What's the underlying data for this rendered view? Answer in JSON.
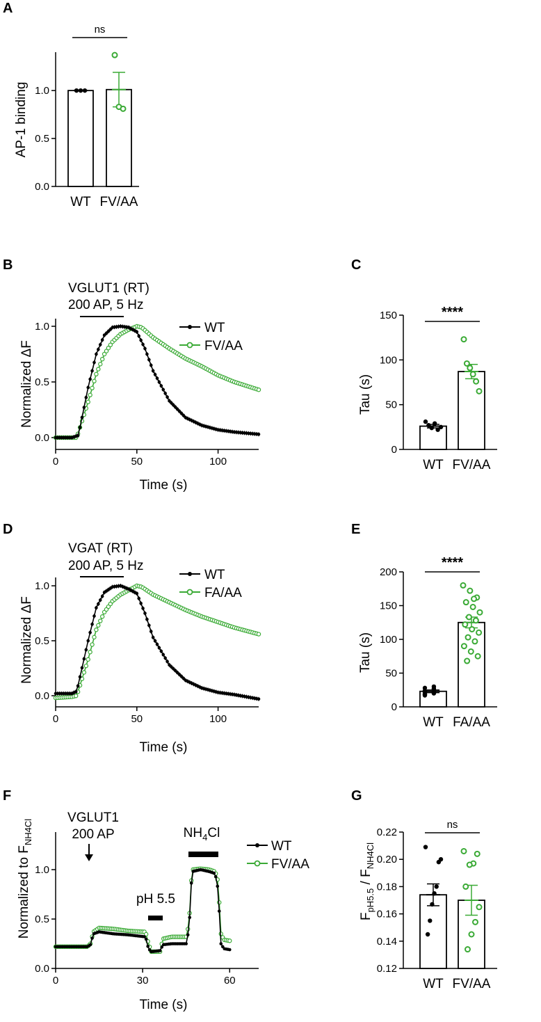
{
  "colors": {
    "wt": "#000000",
    "mut": "#3aaa35"
  },
  "panels": {
    "A": {
      "letter": "A",
      "ylabel": "AP-1 binding",
      "categories": [
        "WT",
        "FV/AA"
      ],
      "significance": "ns",
      "yticks": [
        "0.0",
        "0.5",
        "1.0"
      ]
    },
    "B": {
      "letter": "B",
      "annotation_line1": "VGLUT1 (RT)",
      "annotation_line2": "200 AP, 5 Hz",
      "ylabel": "Normalized ΔF",
      "xlabel": "Time  (s)",
      "legend": [
        "WT",
        "FV/AA"
      ],
      "xticks": [
        "0",
        "50",
        "100"
      ],
      "yticks": [
        "0.0",
        "0.5",
        "1.0"
      ]
    },
    "C": {
      "letter": "C",
      "ylabel": "Tau (s)",
      "categories": [
        "WT",
        "FV/AA"
      ],
      "significance": "****",
      "yticks": [
        "0",
        "50",
        "100",
        "150"
      ]
    },
    "D": {
      "letter": "D",
      "annotation_line1": "VGAT (RT)",
      "annotation_line2": "200 AP, 5 Hz",
      "ylabel": "Normalized ΔF",
      "xlabel": "Time   (s)",
      "legend": [
        "WT",
        "FA/AA"
      ],
      "xticks": [
        "0",
        "50",
        "100"
      ],
      "yticks": [
        "0.0",
        "0.5",
        "1.0"
      ]
    },
    "E": {
      "letter": "E",
      "ylabel": "Tau (s)",
      "categories": [
        "WT",
        "FA/AA"
      ],
      "significance": "****",
      "yticks": [
        "0",
        "50",
        "100",
        "150",
        "200"
      ]
    },
    "F": {
      "letter": "F",
      "annotation_line1": "VGLUT1",
      "annotation_line2": "200 AP",
      "ph_label": "pH 5.5",
      "nh4_main": "NH",
      "nh4_sub": "4",
      "nh4_tail": "Cl",
      "ylabel_main": "Normalized to F",
      "ylabel_sub": "NH4Cl",
      "xlabel": "Time  (s)",
      "legend": [
        "WT",
        "FV/AA"
      ],
      "xticks": [
        "0",
        "30",
        "60"
      ],
      "yticks": [
        "0.0",
        "0.5",
        "1.0"
      ]
    },
    "G": {
      "letter": "G",
      "ylabel_f1": "F",
      "ylabel_s1": "pH5.5",
      "ylabel_mid": " / F",
      "ylabel_s2": "NH4Cl",
      "categories": [
        "WT",
        "FV/AA"
      ],
      "significance": "ns",
      "yticks": [
        "0.12",
        "0.14",
        "0.16",
        "0.18",
        "0.20",
        "0.22"
      ]
    }
  },
  "chart_data": [
    {
      "panel": "A",
      "type": "bar",
      "title": "",
      "xlabel": "",
      "ylabel": "AP-1 binding",
      "categories": [
        "WT",
        "FV/AA"
      ],
      "ylim": [
        0,
        1.4
      ],
      "series": [
        {
          "name": "mean",
          "values": [
            1.0,
            1.01
          ]
        }
      ],
      "sem": [
        0,
        0.18
      ],
      "points": [
        [
          1.0,
          1.0,
          1.0
        ],
        [
          1.37,
          0.83,
          0.81
        ]
      ],
      "significance": "ns"
    },
    {
      "panel": "B",
      "type": "line",
      "title": "VGLUT1 (RT) 200 AP, 5 Hz",
      "xlabel": "Time  (s)",
      "ylabel": "Normalized ΔF",
      "xlim": [
        0,
        125
      ],
      "ylim": [
        -0.05,
        1.1
      ],
      "stimulus": [
        15,
        42
      ],
      "series": [
        {
          "name": "WT",
          "x": [
            0,
            10,
            14,
            20,
            25,
            30,
            35,
            40,
            45,
            50,
            55,
            60,
            70,
            80,
            90,
            100,
            110,
            125
          ],
          "y": [
            0.0,
            0.0,
            0.02,
            0.45,
            0.75,
            0.92,
            0.99,
            1.0,
            0.99,
            0.95,
            0.8,
            0.6,
            0.33,
            0.18,
            0.11,
            0.07,
            0.05,
            0.03
          ]
        },
        {
          "name": "FV/AA",
          "x": [
            0,
            10,
            13,
            20,
            25,
            30,
            35,
            40,
            45,
            50,
            53,
            60,
            70,
            80,
            90,
            100,
            110,
            125
          ],
          "y": [
            0.0,
            0.0,
            0.0,
            0.32,
            0.57,
            0.75,
            0.86,
            0.93,
            0.97,
            1.0,
            0.99,
            0.9,
            0.8,
            0.71,
            0.64,
            0.56,
            0.5,
            0.43
          ]
        }
      ]
    },
    {
      "panel": "C",
      "type": "bar",
      "title": "",
      "xlabel": "",
      "ylabel": "Tau (s)",
      "categories": [
        "WT",
        "FV/AA"
      ],
      "ylim": [
        0,
        150
      ],
      "series": [
        {
          "name": "mean",
          "values": [
            26,
            87
          ]
        }
      ],
      "sem": [
        2,
        8
      ],
      "points": [
        [
          31,
          27,
          24,
          29,
          22,
          25
        ],
        [
          123,
          96,
          91,
          84,
          76,
          65
        ]
      ],
      "significance": "****"
    },
    {
      "panel": "D",
      "type": "line",
      "title": "VGAT (RT) 200 AP, 5 Hz",
      "xlabel": "Time   (s)",
      "ylabel": "Normalized ΔF",
      "xlim": [
        0,
        125
      ],
      "ylim": [
        -0.05,
        1.1
      ],
      "stimulus": [
        15,
        42
      ],
      "series": [
        {
          "name": "WT",
          "x": [
            0,
            10,
            13,
            20,
            25,
            30,
            35,
            40,
            45,
            50,
            55,
            60,
            70,
            80,
            90,
            100,
            110,
            125
          ],
          "y": [
            0.02,
            0.02,
            0.04,
            0.5,
            0.8,
            0.94,
            0.99,
            1.0,
            0.97,
            0.93,
            0.75,
            0.53,
            0.28,
            0.14,
            0.07,
            0.03,
            0.01,
            -0.03
          ]
        },
        {
          "name": "FA/AA",
          "x": [
            0,
            10,
            13,
            20,
            25,
            30,
            35,
            40,
            45,
            50,
            53,
            60,
            70,
            80,
            90,
            100,
            110,
            125
          ],
          "y": [
            -0.02,
            -0.01,
            0.0,
            0.33,
            0.6,
            0.76,
            0.86,
            0.92,
            0.96,
            1.0,
            0.99,
            0.92,
            0.85,
            0.78,
            0.72,
            0.67,
            0.62,
            0.56
          ]
        }
      ]
    },
    {
      "panel": "E",
      "type": "bar",
      "title": "",
      "xlabel": "",
      "ylabel": "Tau (s)",
      "categories": [
        "WT",
        "FA/AA"
      ],
      "ylim": [
        0,
        200
      ],
      "series": [
        {
          "name": "mean",
          "values": [
            23,
            125
          ]
        }
      ],
      "sem": [
        2,
        8
      ],
      "points": [
        [
          28,
          25,
          22,
          20,
          18,
          26,
          23,
          21,
          19,
          30,
          24,
          22,
          17,
          27
        ],
        [
          180,
          172,
          162,
          155,
          148,
          140,
          133,
          128,
          122,
          115,
          110,
          103,
          97,
          90,
          82,
          75,
          68,
          160
        ]
      ],
      "significance": "****"
    },
    {
      "panel": "F",
      "type": "line",
      "title": "VGLUT1 200 AP",
      "xlabel": "Time  (s)",
      "ylabel": "Normalized to F NH4Cl",
      "xlim": [
        0,
        70
      ],
      "ylim": [
        0,
        1.4
      ],
      "stimulus_time": 12,
      "ph55": [
        32,
        36
      ],
      "nh4cl": [
        46,
        55
      ],
      "series": [
        {
          "name": "WT",
          "x": [
            0,
            11,
            12,
            13,
            15,
            20,
            25,
            31,
            32,
            33,
            36,
            37,
            40,
            45,
            46,
            47,
            50,
            53,
            55,
            56,
            57,
            58,
            60
          ],
          "y": [
            0.22,
            0.22,
            0.24,
            0.35,
            0.37,
            0.35,
            0.34,
            0.32,
            0.2,
            0.17,
            0.18,
            0.24,
            0.25,
            0.25,
            0.4,
            0.98,
            1.0,
            0.98,
            0.96,
            0.8,
            0.25,
            0.2,
            0.19
          ]
        },
        {
          "name": "FV/AA",
          "x": [
            0,
            11,
            12,
            13,
            15,
            20,
            25,
            31,
            32,
            33,
            36,
            37,
            40,
            45,
            46,
            47,
            50,
            53,
            55,
            56,
            57,
            58,
            60
          ],
          "y": [
            0.22,
            0.22,
            0.25,
            0.37,
            0.41,
            0.4,
            0.38,
            0.37,
            0.25,
            0.17,
            0.17,
            0.3,
            0.32,
            0.32,
            0.45,
            1.0,
            1.01,
            1.0,
            0.98,
            0.88,
            0.35,
            0.29,
            0.28
          ]
        }
      ]
    },
    {
      "panel": "G",
      "type": "bar",
      "title": "",
      "xlabel": "",
      "ylabel": "FpH5.5 / FNH4Cl",
      "categories": [
        "WT",
        "FV/AA"
      ],
      "ylim": [
        0.12,
        0.22
      ],
      "series": [
        {
          "name": "mean",
          "values": [
            0.174,
            0.17
          ]
        }
      ],
      "sem": [
        0.008,
        0.011
      ],
      "points": [
        [
          0.209,
          0.2,
          0.198,
          0.18,
          0.175,
          0.167,
          0.155,
          0.145
        ],
        [
          0.206,
          0.204,
          0.197,
          0.196,
          0.18,
          0.165,
          0.154,
          0.145,
          0.134
        ]
      ],
      "significance": "ns"
    }
  ]
}
